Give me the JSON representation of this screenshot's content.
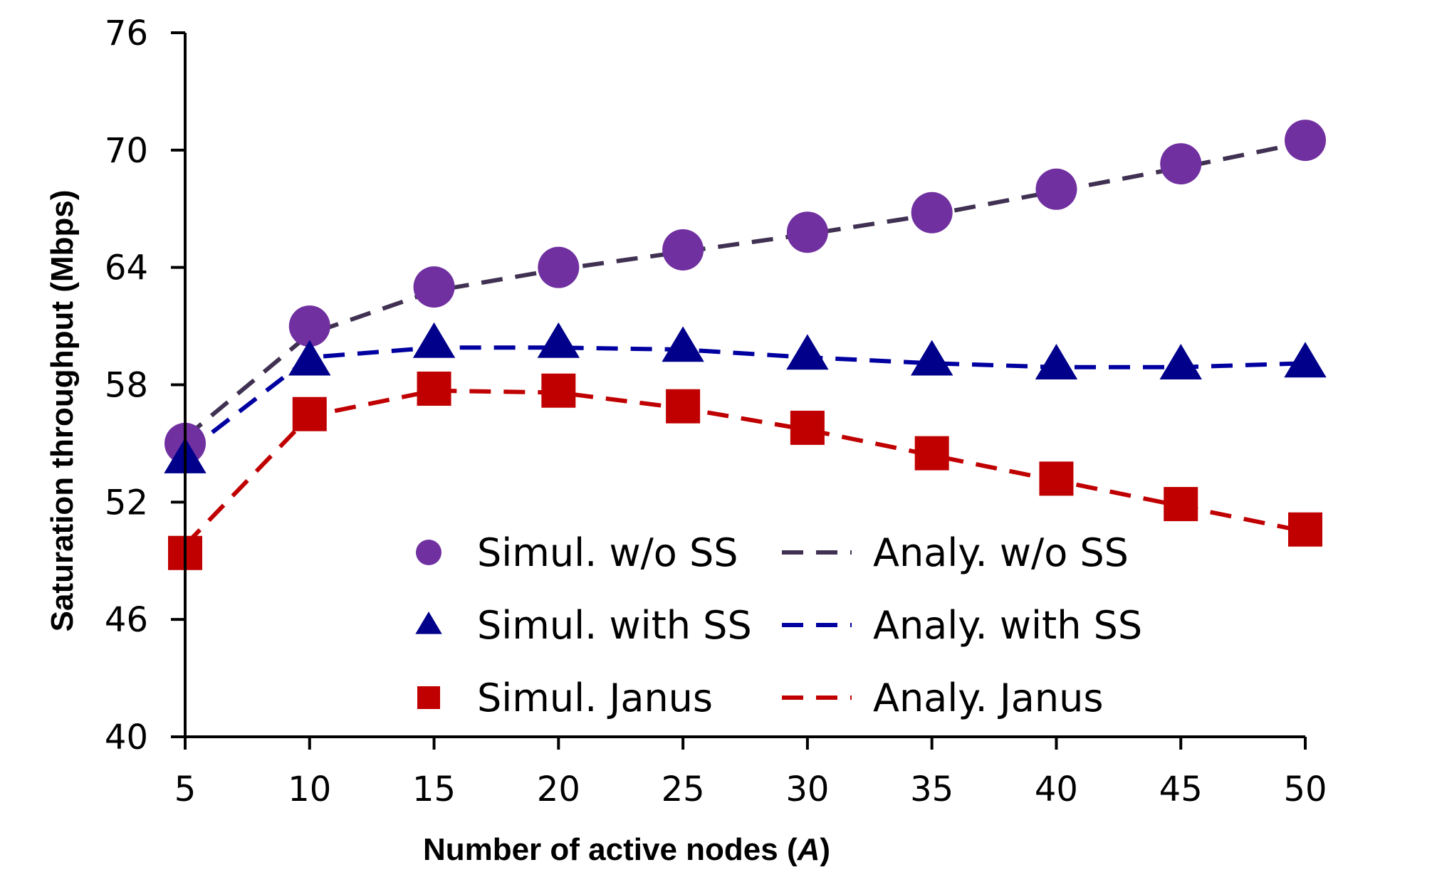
{
  "chart_data": {
    "type": "line",
    "title": "",
    "xlabel": "Number of active nodes (",
    "xlabel_var": "A",
    "xlabel_close": ")",
    "ylabel": "Saturation throughput (Mbps)",
    "x": [
      5,
      10,
      15,
      20,
      25,
      30,
      35,
      40,
      45,
      50
    ],
    "x_ticks": [
      "5",
      "10",
      "15",
      "20",
      "25",
      "30",
      "35",
      "40",
      "45",
      "50"
    ],
    "y_ticks": [
      "40",
      "46",
      "52",
      "58",
      "64",
      "70",
      "76"
    ],
    "xlim": [
      5,
      50
    ],
    "ylim": [
      40,
      76
    ],
    "grid": false,
    "legend_position": "bottom-center",
    "series": [
      {
        "name": "Simul. w/o SS",
        "kind": "markers",
        "marker": "circle",
        "color": "#7030a0",
        "values": [
          55.0,
          61.0,
          63.0,
          64.0,
          64.9,
          65.8,
          66.8,
          68.0,
          69.3,
          70.5
        ]
      },
      {
        "name": "Analy. w/o SS",
        "kind": "dashed-line",
        "color": "#403152",
        "values": [
          55.3,
          60.6,
          62.8,
          63.9,
          64.8,
          65.7,
          66.7,
          67.9,
          69.1,
          70.4
        ]
      },
      {
        "name": "Simul. with SS",
        "kind": "markers",
        "marker": "triangle",
        "color": "#00008b",
        "values": [
          54.2,
          59.2,
          60.1,
          60.1,
          59.9,
          59.5,
          59.2,
          59.0,
          59.0,
          59.1
        ]
      },
      {
        "name": "Analy. with SS",
        "kind": "dashed-line",
        "color": "#0000a0",
        "values": [
          54.5,
          59.4,
          59.9,
          59.9,
          59.8,
          59.4,
          59.1,
          58.9,
          58.9,
          59.1
        ]
      },
      {
        "name": "Simul. Janus",
        "kind": "markers",
        "marker": "square",
        "color": "#c00000",
        "values": [
          49.4,
          56.5,
          57.8,
          57.7,
          56.9,
          55.8,
          54.5,
          53.2,
          51.9,
          50.6
        ]
      },
      {
        "name": "Analy. Janus",
        "kind": "dashed-line",
        "color": "#c00000",
        "values": [
          49.8,
          56.4,
          57.7,
          57.6,
          56.8,
          55.7,
          54.4,
          53.1,
          51.8,
          50.5
        ]
      }
    ]
  }
}
